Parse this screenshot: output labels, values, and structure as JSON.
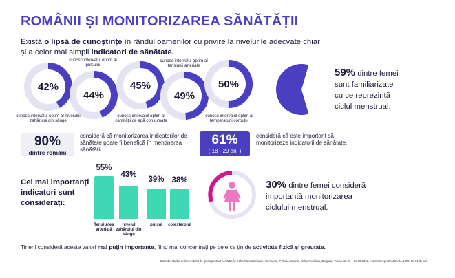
{
  "title": "ROMÂNII ȘI MONITORIZAREA SĂNĂTĂȚII",
  "intro": {
    "t1": "Există ",
    "b1": "o lipsă de cunoștințe",
    "t2": " în rândul oamenilor cu privire la nivelurile adecvate chiar și a celor mai simpli ",
    "b2": "indicatori de sănătate."
  },
  "donuts": [
    {
      "value": 42,
      "label_pct": "42%",
      "label": "cunosc intervalul optim al nivelului zahărului din sânge"
    },
    {
      "value": 44,
      "label_pct": "44%",
      "label": "cunosc intervalul optim al pulsului"
    },
    {
      "value": 45,
      "label_pct": "45%",
      "label": "cunosc intervalul optim al cantității de apă consumate"
    },
    {
      "value": 49,
      "label_pct": "49%",
      "label": "cunosc intervalul optim al tensiunii arteriale"
    },
    {
      "value": 50,
      "label_pct": "50%",
      "label": "cunosc intervalul optim al temperaturii corpului"
    }
  ],
  "pie_stat": {
    "value": 59,
    "pct": "59%",
    "text_a": " dintre femei",
    "text_b": "sunt familiarizate",
    "text_c": "cu ce reprezintă",
    "text_d": "ciclul menstrual."
  },
  "stat90": {
    "pct": "90%",
    "sub": "dintre români",
    "text": "consideră că monitorizarea indicatorilor de sănătate poate fi benefică în menținerea sănătății."
  },
  "stat61": {
    "pct": "61%",
    "sub": "( 18 - 29 ani )",
    "text": "consideră că este important să monitorizeze indicatorii de sănătate."
  },
  "indicators_title": "Cei mai importanți indicatori sunt considerați:",
  "chart_data": {
    "type": "bar",
    "categories": [
      "Tensiunea arterială",
      "nivelul zahărului din sânge",
      "pulsul",
      "colesterolul"
    ],
    "values": [
      55,
      43,
      39,
      38
    ],
    "value_labels": [
      "55%",
      "43%",
      "39%",
      "38%"
    ],
    "title": "Cei mai importanți indicatori sunt considerați:",
    "ylim": [
      0,
      55
    ]
  },
  "stat30": {
    "pct": "30%",
    "text_a": " dintre femei consideră",
    "text_b": "importantă monitorizarea",
    "text_c": "ciclului menstrual."
  },
  "footer": {
    "t1": "Tinerii consideră aceste valori ",
    "b1": "mai puțin importante",
    "t2": ", fiind mai concentrați pe cele ce țin de ",
    "b2": "activitate fizică și greutate."
  },
  "source_note": "Date din studiul online realizat de Ipsos pentru HUAWEI, în 8 țări: Marea Britanie, Germania, Polonia, Spania, Italia, România, Bulgaria, Turcia. 12.09 – 28.09.2023, eșantion reprezentativ N=1000, 18-64 de ani.",
  "colors": {
    "accent": "#4a3fc1",
    "ring": "#e4e3f1",
    "teal": "#3fd8b5",
    "pink": "#d4148f"
  }
}
